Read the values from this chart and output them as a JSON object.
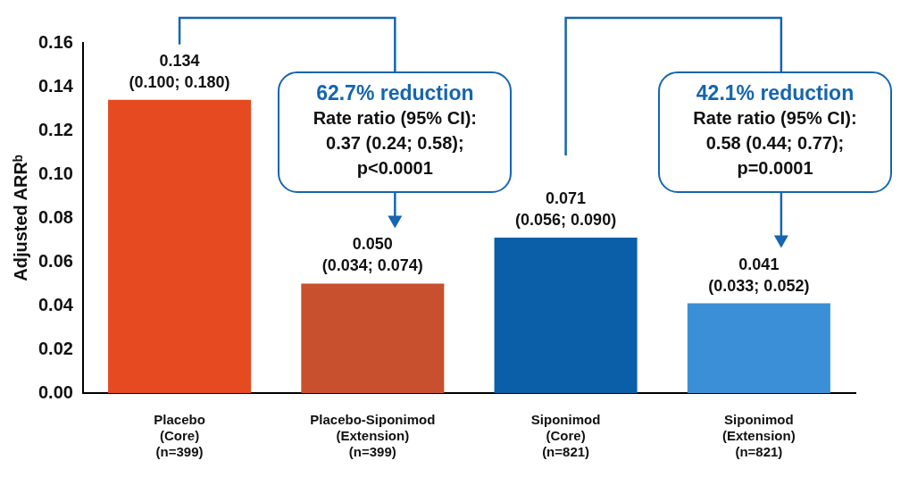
{
  "chart_data": {
    "type": "bar",
    "ylabel": "Adjusted ARRᵇ",
    "categories": [
      "Placebo\n(Core)\n(n=399)",
      "Placebo-Siponimod\n(Extension)\n(n=399)",
      "Siponimod\n(Core)\n(n=821)",
      "Siponimod\n(Extension)\n(n=821)"
    ],
    "values": [
      0.134,
      0.05,
      0.071,
      0.041
    ],
    "colors": [
      "#e64a21",
      "#c8502e",
      "#0a5fa8",
      "#3b8fd6"
    ],
    "value_labels": [
      "0.134\n(0.100; 0.180)",
      "0.050\n(0.034; 0.074)",
      "0.071\n(0.056; 0.090)",
      "0.041\n(0.033; 0.052)"
    ],
    "ylim": [
      0,
      0.16
    ],
    "yticks": [
      {
        "value": 0,
        "label": "0.00"
      },
      {
        "value": 0.02,
        "label": "0.02"
      },
      {
        "value": 0.04,
        "label": "0.04"
      },
      {
        "value": 0.06,
        "label": "0.06"
      },
      {
        "value": 0.08,
        "label": "0.08"
      },
      {
        "value": 0.1,
        "label": "0.10"
      },
      {
        "value": 0.12,
        "label": "0.12"
      },
      {
        "value": 0.14,
        "label": "0.14"
      },
      {
        "value": 0.16,
        "label": "0.16"
      }
    ],
    "annotations": [
      "62.7% reduction\nRate ratio (95% CI):\n0.37 (0.24; 0.58);\np<0.0001",
      "42.1% reduction\nRate ratio (95% CI):\n0.58 (0.44; 0.77);\np=0.0001"
    ],
    "grid": false,
    "legend": false
  }
}
